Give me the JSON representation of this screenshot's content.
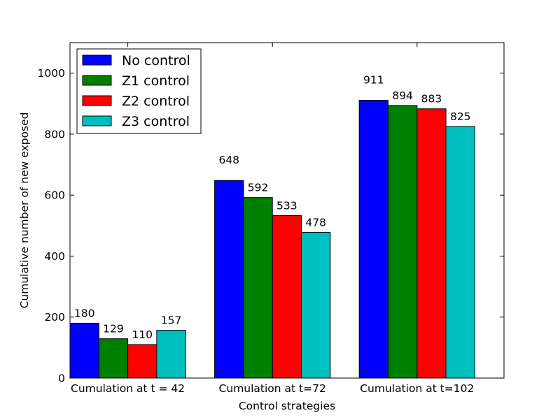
{
  "chart_data": {
    "type": "bar",
    "title": "",
    "xlabel": "Control strategies",
    "ylabel": "Cumulative number of new exposed",
    "categories": [
      "Cumulation at t = 42",
      "Cumulation at t=72",
      "Cumulation at t=102"
    ],
    "series": [
      {
        "name": "No control",
        "color": "#0000ff",
        "values": [
          180,
          648,
          911
        ]
      },
      {
        "name": "Z1 control",
        "color": "#008000",
        "values": [
          129,
          592,
          894
        ]
      },
      {
        "name": "Z2 control",
        "color": "#ff0000",
        "values": [
          110,
          533,
          883
        ]
      },
      {
        "name": "Z3 control",
        "color": "#00bfbf",
        "values": [
          157,
          478,
          825
        ]
      }
    ],
    "ylim": [
      0,
      1100
    ],
    "yticks": [
      0,
      200,
      400,
      600,
      800,
      1000
    ],
    "grid": false,
    "legend_position": "top-left",
    "data_labels": true
  }
}
